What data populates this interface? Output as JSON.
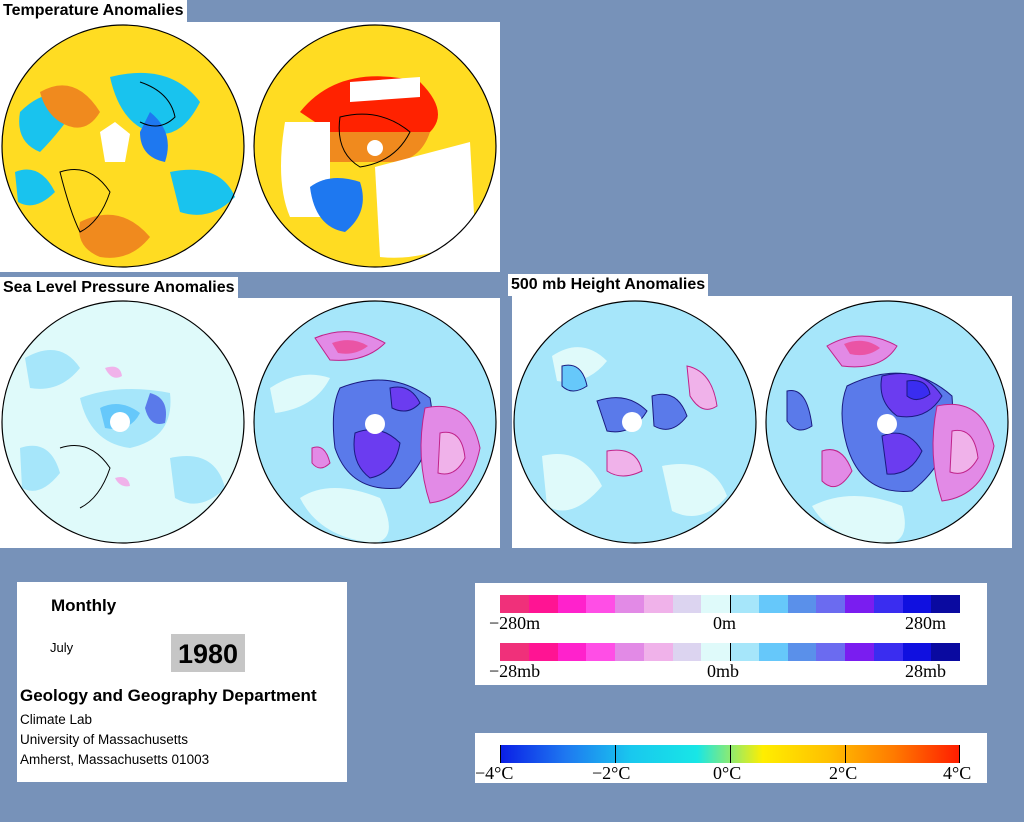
{
  "titles": {
    "temperature": "Temperature Anomalies",
    "slp": "Sea Level Pressure Anomalies",
    "height": "500 mb Height Anomalies"
  },
  "info": {
    "period": "Monthly",
    "month": "July",
    "year": "1980",
    "department": "Geology and Geography Department",
    "lab": "Climate Lab",
    "university": "University of Massachusetts",
    "address": "Amherst, Massachusetts 01003"
  },
  "legend_height": {
    "left": "−280m",
    "center": "0m",
    "right": "280m",
    "colors": [
      "#f0307a",
      "#ff1493",
      "#ff22cc",
      "#ff4ee6",
      "#e28ae6",
      "#f0b2ea",
      "#dcd4f0",
      "#dffafa",
      "#a6e6fa",
      "#66c8fa",
      "#5a90ea",
      "#6b6bf0",
      "#7a1df0",
      "#3a2df0",
      "#1010e0",
      "#0a0aa0"
    ]
  },
  "legend_pressure": {
    "left": "−28mb",
    "center": "0mb",
    "right": "28mb",
    "colors": [
      "#f0307a",
      "#ff1493",
      "#ff22cc",
      "#ff4ee6",
      "#e28ae6",
      "#f0b2ea",
      "#dcd4f0",
      "#dffafa",
      "#a6e6fa",
      "#66c8fa",
      "#5a90ea",
      "#6b6bf0",
      "#7a1df0",
      "#3a2df0",
      "#1010e0",
      "#0a0aa0"
    ]
  },
  "legend_temperature": {
    "ticks": [
      "−4°C",
      "−2°C",
      "0°C",
      "2°C",
      "4°C"
    ],
    "colors": [
      "#0a1ee6",
      "#1e78f0",
      "#19c8ee",
      "#18e6e6",
      "#ffee00",
      "#ffc000",
      "#ff7a00",
      "#ff1c00"
    ]
  },
  "map_colors": {
    "temp_base": "#ffdc22",
    "temp_cold": "#19c3ee",
    "temp_cold2": "#1e78f0",
    "temp_warm": "#f08a1e",
    "temp_hot": "#ff2200",
    "nodata": "#ffffff",
    "anom_base": "#dffafa",
    "anom_neg1": "#a6e6fa",
    "anom_neg2": "#66c8fa",
    "anom_neg3": "#5a7aea",
    "anom_neg4": "#6b3cf0",
    "anom_pos1": "#f0b2ea",
    "anom_pos2": "#e28ae6",
    "contour_pos": "#c0228a",
    "contour_neg": "#1a1a80"
  }
}
